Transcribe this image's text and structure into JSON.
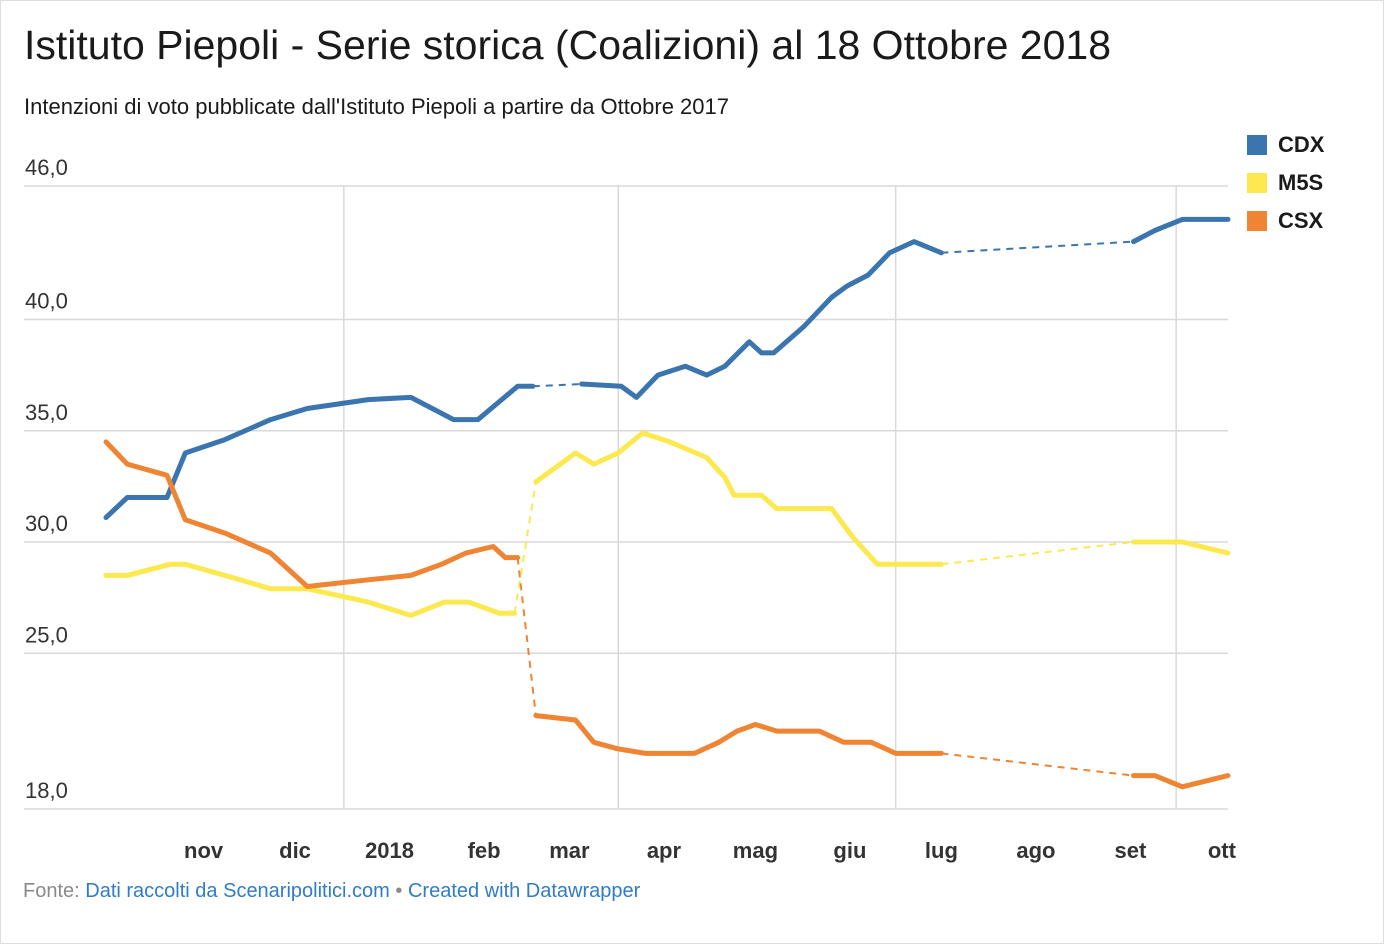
{
  "title": "Istituto Piepoli - Serie storica (Coalizioni) al 18 Ottobre 2018",
  "subtitle": "Intenzioni di voto pubblicate dall'Istituto Piepoli a partire da Ottobre 2017",
  "footer": {
    "source_label": "Fonte:",
    "source_text": "Dati raccolti da Scenaripolitici.com",
    "separator": "•",
    "credit": "Created with Datawrapper"
  },
  "chart_data": {
    "type": "line",
    "title": "Istituto Piepoli - Serie storica (Coalizioni) al 18 Ottobre 2018",
    "subtitle": "Intenzioni di voto pubblicate dall'Istituto Piepoli a partire da Ottobre 2017",
    "xlim": [
      "2017-10-15",
      "2018-10-18"
    ],
    "ylim": [
      18,
      46
    ],
    "y_ticks": [
      {
        "value": 46,
        "label": "46,0"
      },
      {
        "value": 40,
        "label": "40,0"
      },
      {
        "value": 35,
        "label": "35,0"
      },
      {
        "value": 30,
        "label": "30,0"
      },
      {
        "value": 25,
        "label": "25,0"
      },
      {
        "value": 18,
        "label": "18,0"
      }
    ],
    "x_ticks": [
      {
        "date": "2017-11-01",
        "label": "nov"
      },
      {
        "date": "2017-12-01",
        "label": "dic"
      },
      {
        "date": "2018-01-01",
        "label": "2018"
      },
      {
        "date": "2018-02-01",
        "label": "feb"
      },
      {
        "date": "2018-03-01",
        "label": "mar"
      },
      {
        "date": "2018-04-01",
        "label": "apr"
      },
      {
        "date": "2018-05-01",
        "label": "mag"
      },
      {
        "date": "2018-06-01",
        "label": "giu"
      },
      {
        "date": "2018-07-01",
        "label": "lug"
      },
      {
        "date": "2018-08-01",
        "label": "ago"
      },
      {
        "date": "2018-09-01",
        "label": "set"
      },
      {
        "date": "2018-10-01",
        "label": "ott"
      }
    ],
    "x_gridlines": [
      "2018-01-01",
      "2018-04-01",
      "2018-07-01",
      "2018-10-01"
    ],
    "legend_position": "top-right",
    "series": [
      {
        "name": "CDX",
        "color": "#3b75af",
        "segments": [
          {
            "style": "solid",
            "points": [
              [
                "2017-10-15",
                31.1
              ],
              [
                "2017-10-22",
                32.0
              ],
              [
                "2017-11-04",
                32.0
              ],
              [
                "2017-11-10",
                34.0
              ],
              [
                "2017-11-23",
                34.6
              ],
              [
                "2017-12-08",
                35.5
              ],
              [
                "2017-12-20",
                36.0
              ],
              [
                "2018-01-09",
                36.4
              ],
              [
                "2018-01-23",
                36.5
              ],
              [
                "2018-02-06",
                35.5
              ],
              [
                "2018-02-14",
                35.5
              ],
              [
                "2018-02-27",
                37.0
              ],
              [
                "2018-03-04",
                37.0
              ]
            ]
          },
          {
            "style": "dashed",
            "points": [
              [
                "2018-03-04",
                37.0
              ],
              [
                "2018-03-20",
                37.1
              ]
            ]
          },
          {
            "style": "solid",
            "points": [
              [
                "2018-03-20",
                37.1
              ],
              [
                "2018-04-02",
                37.0
              ],
              [
                "2018-04-07",
                36.5
              ],
              [
                "2018-04-14",
                37.5
              ],
              [
                "2018-04-23",
                37.9
              ],
              [
                "2018-04-30",
                37.5
              ],
              [
                "2018-05-06",
                37.9
              ],
              [
                "2018-05-14",
                39.0
              ],
              [
                "2018-05-18",
                38.5
              ],
              [
                "2018-05-22",
                38.5
              ],
              [
                "2018-06-01",
                39.7
              ],
              [
                "2018-06-10",
                41.0
              ],
              [
                "2018-06-15",
                41.5
              ],
              [
                "2018-06-22",
                42.0
              ],
              [
                "2018-06-29",
                43.0
              ],
              [
                "2018-07-07",
                43.5
              ],
              [
                "2018-07-16",
                43.0
              ]
            ]
          },
          {
            "style": "dashed",
            "points": [
              [
                "2018-07-16",
                43.0
              ],
              [
                "2018-09-17",
                43.5
              ]
            ]
          },
          {
            "style": "solid",
            "points": [
              [
                "2018-09-17",
                43.5
              ],
              [
                "2018-09-24",
                44.0
              ],
              [
                "2018-10-03",
                44.5
              ],
              [
                "2018-10-18",
                44.5
              ]
            ]
          }
        ]
      },
      {
        "name": "M5S",
        "color": "#fce84f",
        "segments": [
          {
            "style": "solid",
            "points": [
              [
                "2017-10-15",
                28.5
              ],
              [
                "2017-10-22",
                28.5
              ],
              [
                "2017-11-05",
                29.0
              ],
              [
                "2017-11-10",
                29.0
              ],
              [
                "2017-11-23",
                28.5
              ],
              [
                "2017-12-08",
                27.9
              ],
              [
                "2017-12-20",
                27.9
              ],
              [
                "2018-01-09",
                27.3
              ],
              [
                "2018-01-23",
                26.7
              ],
              [
                "2018-02-03",
                27.3
              ],
              [
                "2018-02-11",
                27.3
              ],
              [
                "2018-02-21",
                26.8
              ],
              [
                "2018-02-26",
                26.8
              ]
            ]
          },
          {
            "style": "dashed",
            "points": [
              [
                "2018-02-26",
                26.8
              ],
              [
                "2018-03-05",
                32.7
              ]
            ]
          },
          {
            "style": "solid",
            "points": [
              [
                "2018-03-05",
                32.7
              ],
              [
                "2018-03-18",
                34.0
              ],
              [
                "2018-03-24",
                33.5
              ],
              [
                "2018-04-01",
                34.0
              ],
              [
                "2018-04-09",
                34.9
              ],
              [
                "2018-04-18",
                34.5
              ],
              [
                "2018-04-30",
                33.8
              ],
              [
                "2018-05-06",
                32.9
              ],
              [
                "2018-05-09",
                32.1
              ],
              [
                "2018-05-18",
                32.1
              ],
              [
                "2018-05-23",
                31.5
              ],
              [
                "2018-06-10",
                31.5
              ],
              [
                "2018-06-17",
                30.2
              ],
              [
                "2018-06-25",
                29.0
              ],
              [
                "2018-07-16",
                29.0
              ]
            ]
          },
          {
            "style": "dashed",
            "points": [
              [
                "2018-07-16",
                29.0
              ],
              [
                "2018-09-17",
                30.0
              ]
            ]
          },
          {
            "style": "solid",
            "points": [
              [
                "2018-09-17",
                30.0
              ],
              [
                "2018-10-03",
                30.0
              ],
              [
                "2018-10-18",
                29.5
              ]
            ]
          }
        ]
      },
      {
        "name": "CSX",
        "color": "#ef8432",
        "segments": [
          {
            "style": "solid",
            "points": [
              [
                "2017-10-15",
                34.5
              ],
              [
                "2017-10-22",
                33.5
              ],
              [
                "2017-11-04",
                33.0
              ],
              [
                "2017-11-10",
                31.0
              ],
              [
                "2017-11-23",
                30.4
              ],
              [
                "2017-12-08",
                29.5
              ],
              [
                "2017-12-20",
                28.0
              ],
              [
                "2018-01-09",
                28.3
              ],
              [
                "2018-01-23",
                28.5
              ],
              [
                "2018-02-02",
                29.0
              ],
              [
                "2018-02-10",
                29.5
              ],
              [
                "2018-02-19",
                29.8
              ],
              [
                "2018-02-23",
                29.3
              ],
              [
                "2018-02-27",
                29.3
              ]
            ]
          },
          {
            "style": "dashed",
            "points": [
              [
                "2018-02-27",
                29.3
              ],
              [
                "2018-03-05",
                22.2
              ]
            ]
          },
          {
            "style": "solid",
            "points": [
              [
                "2018-03-05",
                22.2
              ],
              [
                "2018-03-18",
                22.0
              ],
              [
                "2018-03-24",
                21.0
              ],
              [
                "2018-04-01",
                20.7
              ],
              [
                "2018-04-10",
                20.5
              ],
              [
                "2018-04-26",
                20.5
              ],
              [
                "2018-05-04",
                21.0
              ],
              [
                "2018-05-10",
                21.5
              ],
              [
                "2018-05-16",
                21.8
              ],
              [
                "2018-05-23",
                21.5
              ],
              [
                "2018-06-06",
                21.5
              ],
              [
                "2018-06-14",
                21.0
              ],
              [
                "2018-06-23",
                21.0
              ],
              [
                "2018-07-01",
                20.5
              ],
              [
                "2018-07-16",
                20.5
              ]
            ]
          },
          {
            "style": "dashed",
            "points": [
              [
                "2018-07-16",
                20.5
              ],
              [
                "2018-09-17",
                19.5
              ]
            ]
          },
          {
            "style": "solid",
            "points": [
              [
                "2018-09-17",
                19.5
              ],
              [
                "2018-09-24",
                19.5
              ],
              [
                "2018-10-03",
                19.0
              ],
              [
                "2018-10-18",
                19.5
              ]
            ]
          }
        ]
      }
    ]
  }
}
